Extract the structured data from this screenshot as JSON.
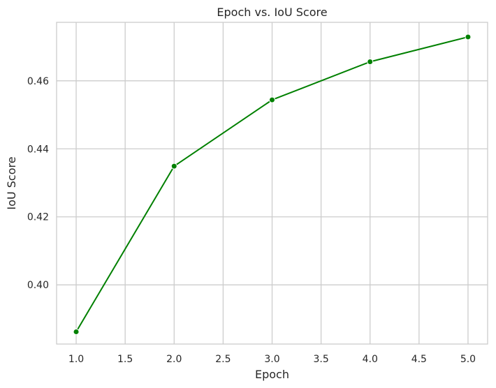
{
  "chart_data": {
    "type": "line",
    "title": "Epoch vs. IoU Score",
    "xlabel": "Epoch",
    "ylabel": "IoU Score",
    "xlim": [
      0.8,
      5.2
    ],
    "ylim": [
      0.3826,
      0.4772
    ],
    "x_ticks": [
      1.0,
      1.5,
      2.0,
      2.5,
      3.0,
      3.5,
      4.0,
      4.5,
      5.0
    ],
    "x_tick_labels": [
      "1.0",
      "1.5",
      "2.0",
      "2.5",
      "3.0",
      "3.5",
      "4.0",
      "4.5",
      "5.0"
    ],
    "y_ticks": [
      0.4,
      0.42,
      0.44,
      0.46
    ],
    "y_tick_labels": [
      "0.40",
      "0.42",
      "0.44",
      "0.46"
    ],
    "grid": true,
    "series": [
      {
        "x": [
          1,
          2,
          3,
          4,
          5
        ],
        "values": [
          0.3862,
          0.4349,
          0.4544,
          0.4656,
          0.4729
        ],
        "color": "#008000",
        "marker": "circle"
      }
    ]
  }
}
